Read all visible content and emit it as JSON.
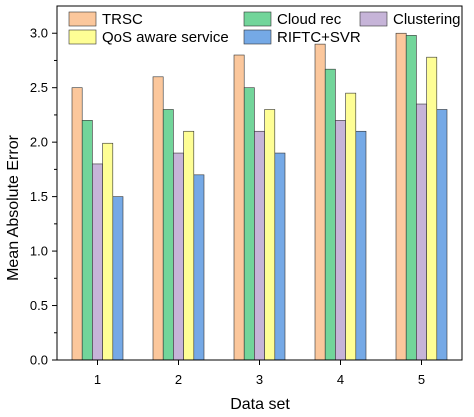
{
  "chart_data": {
    "type": "bar",
    "categories": [
      "1",
      "2",
      "3",
      "4",
      "5"
    ],
    "series": [
      {
        "name": "TRSC",
        "values": [
          2.5,
          2.6,
          2.8,
          2.9,
          3.0
        ],
        "color": "#FBC79C"
      },
      {
        "name": "Cloud rec",
        "values": [
          2.2,
          2.3,
          2.5,
          2.67,
          2.98
        ],
        "color": "#72D59A"
      },
      {
        "name": "Clustering",
        "values": [
          1.8,
          1.9,
          2.1,
          2.2,
          2.35
        ],
        "color": "#C6B4D8"
      },
      {
        "name": "QoS aware service",
        "values": [
          1.99,
          2.1,
          2.3,
          2.45,
          2.78
        ],
        "color": "#FEFE95"
      },
      {
        "name": "RIFTC+SVR",
        "values": [
          1.5,
          1.7,
          1.9,
          2.1,
          2.3
        ],
        "color": "#75A9E6"
      }
    ],
    "xlabel": "Data set",
    "ylabel": "Mean Absolute Error",
    "ylim": [
      0,
      3.25
    ],
    "yticks": [
      "0.0",
      "0.5",
      "1.0",
      "1.5",
      "2.0",
      "2.5",
      "3.0"
    ],
    "legend_position": "top",
    "grid": false
  }
}
